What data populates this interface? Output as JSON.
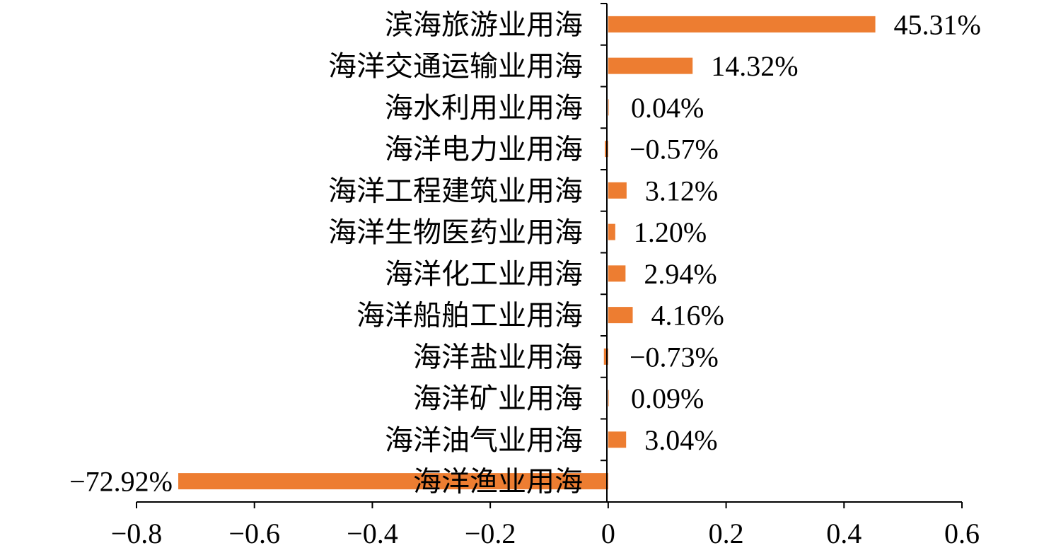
{
  "chart_data": {
    "type": "bar",
    "orientation": "horizontal",
    "categories": [
      "滨海旅游业用海",
      "海洋交通运输业用海",
      "海水利用业用海",
      "海洋电力业用海",
      "海洋工程建筑业用海",
      "海洋生物医药业用海",
      "海洋化工业用海",
      "海洋船舶工业用海",
      "海洋盐业用海",
      "海洋矿业用海",
      "海洋油气业用海",
      "海洋渔业用海"
    ],
    "values": [
      0.4531,
      0.1432,
      0.0004,
      -0.0057,
      0.0312,
      0.012,
      0.0294,
      0.0416,
      -0.0073,
      0.0009,
      0.0304,
      -0.7292
    ],
    "data_labels": [
      "45.31%",
      "14.32%",
      "0.04%",
      "−0.57%",
      "3.12%",
      "1.20%",
      "2.94%",
      "4.16%",
      "−0.73%",
      "0.09%",
      "3.04%",
      "−72.92%"
    ],
    "xlim": [
      -0.8,
      0.6
    ],
    "xticks": [
      -0.8,
      -0.6,
      -0.4,
      -0.2,
      0,
      0.2,
      0.4,
      0.6
    ],
    "xtick_labels": [
      "−0.8",
      "−0.6",
      "−0.4",
      "−0.2",
      "0",
      "0.2",
      "0.4",
      "0.6"
    ],
    "title": "",
    "xlabel": "",
    "ylabel": "",
    "grid": false,
    "legend": "none",
    "bar_color": "#ED7D31"
  }
}
